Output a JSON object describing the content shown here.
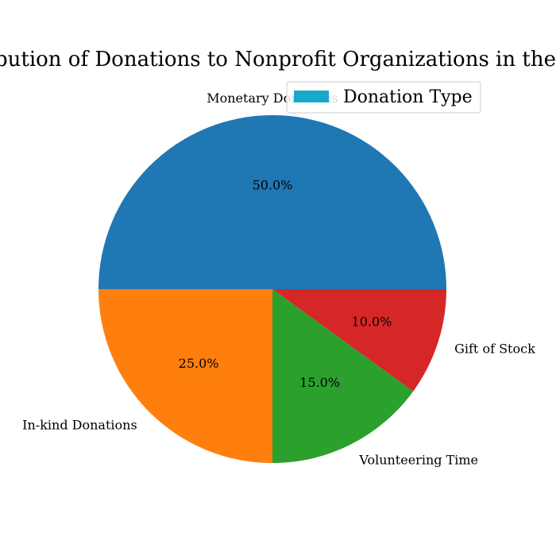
{
  "chart_data": {
    "type": "pie",
    "title": "Distribution of Donations to Nonprofit Organizations in the USA",
    "categories": [
      "Monetary Donations",
      "In-kind Donations",
      "Volunteering Time",
      "Gift of Stock"
    ],
    "values": [
      50,
      25,
      15,
      10
    ],
    "percent_labels": [
      "50.0%",
      "25.0%",
      "15.0%",
      "10.0%"
    ],
    "colors": [
      "#1f77b4",
      "#ff7f0e",
      "#2ca02c",
      "#d62728"
    ],
    "legend": {
      "title": "Donation Type",
      "swatch_color": "#17a9c9",
      "placement": "top-right"
    }
  }
}
